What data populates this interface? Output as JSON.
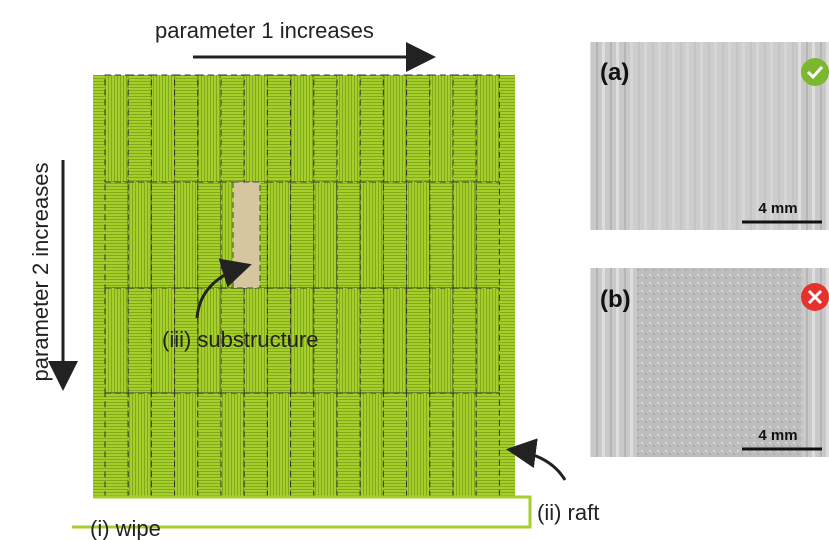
{
  "labels": {
    "parameter1": "parameter 1 increases",
    "parameter2": "parameter 2 increases",
    "substructure": "(iii) substructure",
    "raft": "(ii) raft",
    "wipe": "(i) wipe"
  },
  "photos": [
    {
      "label": "(a)",
      "scale": "4 mm"
    },
    {
      "label": "(b)",
      "scale": "4 mm"
    }
  ]
}
